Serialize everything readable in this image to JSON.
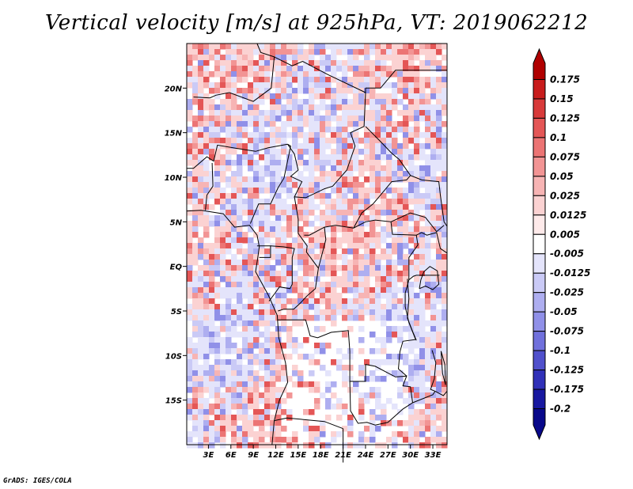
{
  "title": "Vertical velocity [m/s] at 925hPa, VT: 2019062212",
  "footer": "GrADS: IGES/COLA",
  "chart_data": {
    "type": "heatmap",
    "title": "Vertical velocity [m/s] at 925hPa, VT: 2019062212",
    "variable": "Vertical velocity",
    "units": "m/s",
    "level": "925hPa",
    "valid_time": "2019062212",
    "x_ticks": [
      "3E",
      "6E",
      "9E",
      "12E",
      "15E",
      "18E",
      "21E",
      "24E",
      "27E",
      "30E",
      "33E"
    ],
    "x_tick_values": [
      3,
      6,
      9,
      12,
      15,
      18,
      21,
      24,
      27,
      30,
      33
    ],
    "y_ticks": [
      "20N",
      "15N",
      "10N",
      "5N",
      "EQ",
      "5S",
      "10S",
      "15S"
    ],
    "y_tick_values": [
      20,
      15,
      10,
      5,
      0,
      -5,
      -10,
      -15
    ],
    "xlim": [
      0.1,
      34.9
    ],
    "ylim": [
      -20,
      25
    ],
    "colorbar": {
      "labels": [
        "0.175",
        "0.15",
        "0.125",
        "0.1",
        "0.075",
        "0.05",
        "0.025",
        "0.0125",
        "0.005",
        "-0.005",
        "-0.0125",
        "-0.025",
        "-0.05",
        "-0.075",
        "-0.1",
        "-0.125",
        "-0.175",
        "-0.2"
      ],
      "colors": [
        "#b00000",
        "#c81c1c",
        "#d83a3a",
        "#e45656",
        "#ec7474",
        "#f29494",
        "#f7b4b4",
        "#fbd2d2",
        "#feeaea",
        "#ffffff",
        "#e4e4fb",
        "#cacaf6",
        "#aeaef0",
        "#9090e8",
        "#7070dc",
        "#5050cc",
        "#3030b8",
        "#1818a0",
        "#08088a"
      ],
      "extend": "both"
    }
  }
}
